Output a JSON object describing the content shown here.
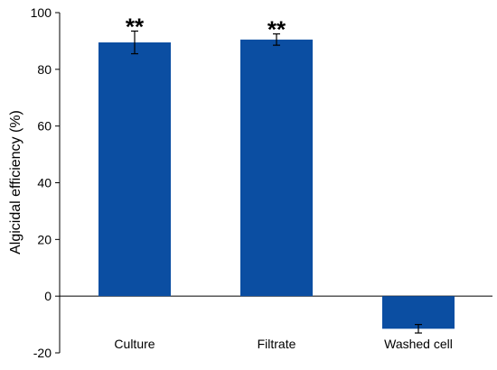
{
  "chart_data": {
    "type": "bar",
    "categories": [
      "Culture",
      "Filtrate",
      "Washed cell"
    ],
    "values": [
      89.5,
      90.5,
      -11.5
    ],
    "errors": [
      4.0,
      2.0,
      1.5
    ],
    "annotations": [
      "**",
      "**",
      ""
    ],
    "ylabel": "Algicidal efficiency (%)",
    "xlabel": "",
    "ylim": [
      -20,
      100
    ],
    "yticks": [
      -20,
      0,
      20,
      40,
      60,
      80,
      100
    ],
    "bar_color": "#0b4ea2",
    "grid": false
  }
}
